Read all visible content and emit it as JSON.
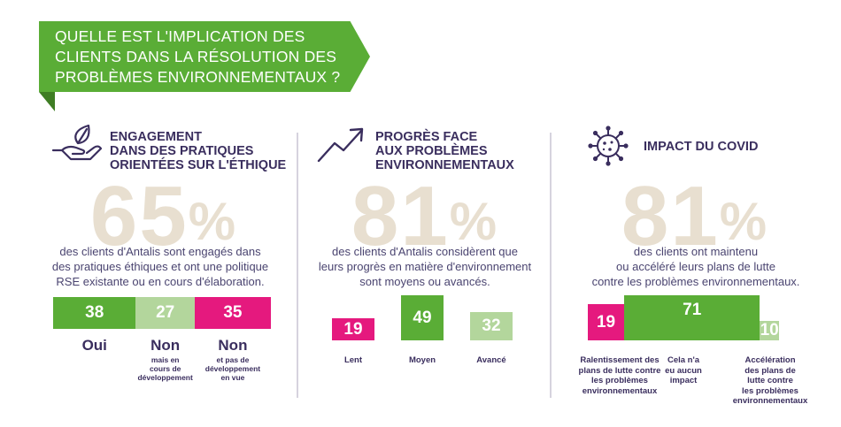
{
  "banner": {
    "title": "QUELLE EST L'IMPLICATION DES CLIENTS DANS LA RÉSOLUTION DES PROBLÈMES ENVIRONNEMENTAUX ?"
  },
  "colors": {
    "green": "#5aad36",
    "light_green": "#b3d69c",
    "magenta": "#e5197e",
    "navy": "#3a2e5e",
    "beige": "#e8dfd0"
  },
  "sections": [
    {
      "icon": "hand-leaf-icon",
      "title_lines": [
        "ENGAGEMENT",
        "DANS DES PRATIQUES",
        "ORIENTÉES SUR L'ÉTHIQUE"
      ],
      "big_value": "65",
      "big_unit": "%",
      "desc_lines": [
        "des clients d'Antalis sont engagés dans",
        "des pratiques éthiques et ont une politique",
        "RSE existante ou en cours d'élaboration."
      ]
    },
    {
      "icon": "trend-arrow-icon",
      "title_lines": [
        "PROGRÈS FACE",
        "AUX PROBLÈMES",
        "ENVIRONNEMENTAUX"
      ],
      "big_value": "81",
      "big_unit": "%",
      "desc_lines": [
        "des clients d'Antalis considèrent que",
        "leurs progrès en matière d'environnement",
        "sont moyens ou avancés."
      ]
    },
    {
      "icon": "virus-icon",
      "title_lines": [
        "IMPACT DU COVID"
      ],
      "big_value": "81",
      "big_unit": "%",
      "desc_lines": [
        "des clients ont maintenu",
        "ou accéléré leurs plans de lutte",
        "contre les problèmes environnementaux."
      ]
    }
  ],
  "chart_data": [
    {
      "type": "bar",
      "values": [
        38,
        27,
        35
      ],
      "colors": [
        "#5aad36",
        "#b3d69c",
        "#e5197e"
      ],
      "labels": [
        "Oui",
        "Non",
        "Non"
      ],
      "sublabels": [
        "",
        "mais en\ncours de\ndéveloppement",
        "et pas de\ndéveloppement\nen vue"
      ]
    },
    {
      "type": "bar",
      "values": [
        19,
        49,
        32
      ],
      "colors": [
        "#e5197e",
        "#5aad36",
        "#b3d69c"
      ],
      "labels": [
        "Lent",
        "Moyen",
        "Avancé"
      ]
    },
    {
      "type": "bar",
      "values": [
        19,
        71,
        10
      ],
      "colors": [
        "#e5197e",
        "#5aad36",
        "#b3d69c"
      ],
      "labels": [
        "Ralentissement des\nplans de lutte contre\nles problèmes\nenvironnementaux",
        "Cela n'a\neu aucun\nimpact",
        "Accélération\ndes plans de\nlutte contre\nles problèmes\nenvironnementaux"
      ]
    }
  ]
}
